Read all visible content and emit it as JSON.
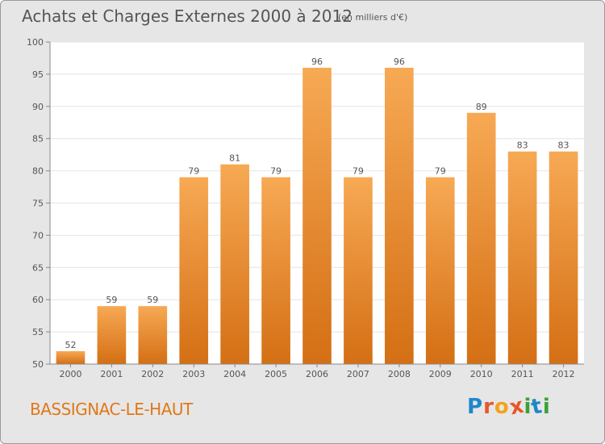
{
  "header": {
    "title": "Achats et Charges Externes 2000 à 2012",
    "unit": "(en milliers d'€)"
  },
  "footer": {
    "place": "BASSIGNAC-LE-HAUT",
    "logo_letters": [
      "P",
      "r",
      "o",
      "x",
      "i",
      "t",
      "i"
    ]
  },
  "colors": {
    "bar_light": "#f7a954",
    "bar_dark": "#d46f14",
    "background": "#e6e6e6",
    "plot_background": "#ffffff",
    "grid": "#e4e4e4",
    "logo": [
      "#1e88c8",
      "#e8562a",
      "#f4a21b",
      "#e8562a",
      "#3aa235",
      "#1e88c8",
      "#3aa235"
    ]
  },
  "chart_data": {
    "type": "bar",
    "title": "Achats et Charges Externes 2000 à 2012",
    "subtitle": "(en milliers d'€)",
    "categories": [
      "2000",
      "2001",
      "2002",
      "2003",
      "2004",
      "2005",
      "2006",
      "2007",
      "2008",
      "2009",
      "2010",
      "2011",
      "2012"
    ],
    "values": [
      52,
      59,
      59,
      79,
      81,
      79,
      96,
      79,
      96,
      79,
      89,
      83,
      83
    ],
    "ylim": [
      50,
      100
    ],
    "yticks": [
      50,
      55,
      60,
      65,
      70,
      75,
      80,
      85,
      90,
      95,
      100
    ],
    "grid": true,
    "legend": "none"
  }
}
